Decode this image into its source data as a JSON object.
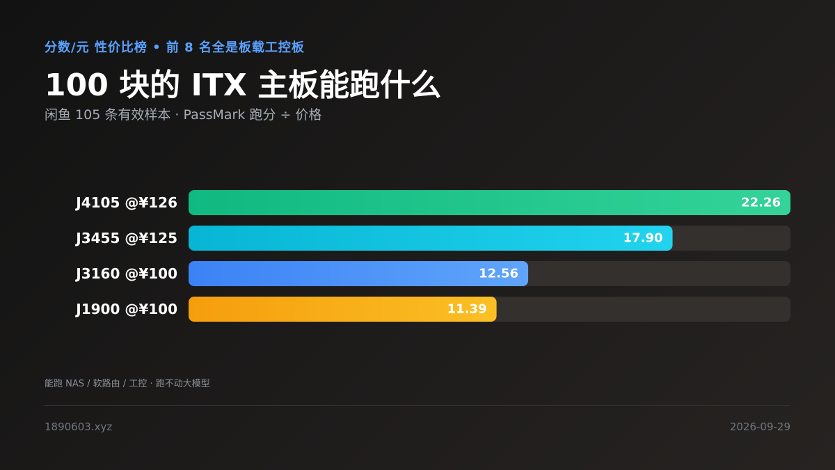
{
  "header": {
    "kicker": "分数/元 性价比榜 • 前 8 名全是板载工控板",
    "title": "100 块的 ITX 主板能跑什么",
    "subtitle": "闲鱼 105 条有效样本 · PassMark 跑分 ÷ 价格"
  },
  "chart_data": {
    "type": "bar",
    "orientation": "horizontal",
    "categories": [
      "J4105 @¥126",
      "J3455 @¥125",
      "J3160 @¥100",
      "J1900 @¥100"
    ],
    "values": [
      22.26,
      17.9,
      12.56,
      11.39
    ],
    "value_labels": [
      "22.26",
      "17.90",
      "12.56",
      "11.39"
    ],
    "xlim": [
      0,
      22.26
    ],
    "colors": [
      [
        "#10b981",
        "#34d399"
      ],
      [
        "#06b6d4",
        "#22d3ee"
      ],
      [
        "#3b82f6",
        "#60a5fa"
      ],
      [
        "#f59e0b",
        "#fbbf24"
      ]
    ],
    "track_color": "#33302e"
  },
  "footer": {
    "note": "能跑 NAS / 软路由 / 工控 · 跑不动大模型",
    "site": "1890603.xyz",
    "date": "2026-09-29"
  }
}
